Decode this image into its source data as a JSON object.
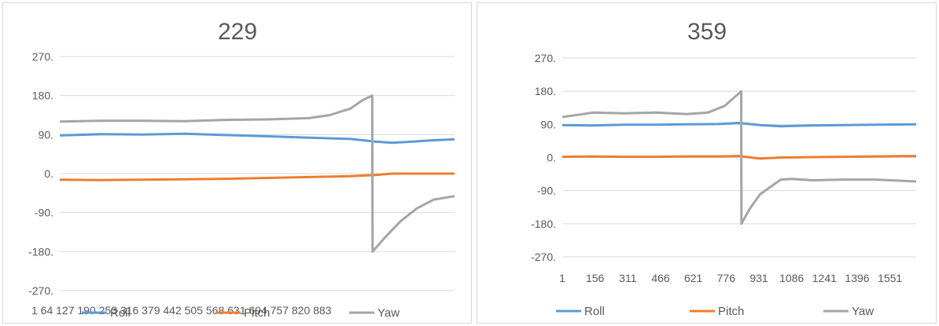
{
  "colors": {
    "roll": "#5b9bd5",
    "pitch": "#ed7d31",
    "yaw": "#a5a5a5",
    "grid": "#d9d9d9",
    "text": "#595959"
  },
  "chart_data": [
    {
      "type": "line",
      "title": "229",
      "ylim": [
        -270,
        270
      ],
      "yticks": [
        "270.",
        "180.",
        "90.",
        "0.",
        "-90.",
        "-180.",
        "-270."
      ],
      "xtick_labels_text": "1   64 127 190 253 316 379 442 505 568 631 694 757 820 883",
      "grid": true,
      "legend_position": "bottom",
      "series": [
        {
          "name": "Roll",
          "x": [
            1,
            100,
            200,
            300,
            400,
            500,
            600,
            700,
            760,
            800,
            850,
            900,
            950
          ],
          "values": [
            88,
            91,
            90,
            92,
            89,
            86,
            83,
            80,
            74,
            71,
            74,
            77,
            79
          ]
        },
        {
          "name": "Pitch",
          "x": [
            1,
            100,
            200,
            300,
            400,
            500,
            600,
            700,
            760,
            800,
            850,
            900,
            950
          ],
          "values": [
            -14,
            -15,
            -14,
            -13,
            -12,
            -10,
            -8,
            -6,
            -3,
            0,
            0,
            0,
            0
          ]
        },
        {
          "name": "Yaw",
          "x": [
            1,
            100,
            200,
            300,
            400,
            500,
            600,
            650,
            700,
            730,
            752,
            753,
            780,
            820,
            860,
            900,
            950
          ],
          "values": [
            120,
            122,
            122,
            121,
            124,
            125,
            128,
            135,
            150,
            170,
            180,
            -180,
            -150,
            -110,
            -80,
            -60,
            -52
          ]
        }
      ]
    },
    {
      "type": "line",
      "title": "359",
      "ylim": [
        -270,
        270
      ],
      "yticks": [
        "270.",
        "180.",
        "90.",
        "0.",
        "-90.",
        "-180.",
        "-270."
      ],
      "xtick_labels": [
        "1",
        "156",
        "311",
        "466",
        "621",
        "776",
        "931",
        "1086",
        "1241",
        "1396",
        "1551"
      ],
      "grid": true,
      "legend_position": "bottom",
      "series": [
        {
          "name": "Roll",
          "x": [
            1,
            150,
            300,
            450,
            600,
            750,
            850,
            950,
            1050,
            1200,
            1350,
            1500,
            1700
          ],
          "values": [
            88,
            87,
            89,
            89,
            90,
            91,
            94,
            88,
            85,
            87,
            88,
            89,
            90
          ]
        },
        {
          "name": "Pitch",
          "x": [
            1,
            150,
            300,
            450,
            600,
            750,
            850,
            950,
            1050,
            1200,
            1350,
            1500,
            1700
          ],
          "values": [
            2,
            3,
            2,
            2,
            3,
            3,
            4,
            -3,
            0,
            1,
            2,
            3,
            4
          ]
        },
        {
          "name": "Yaw",
          "x": [
            1,
            150,
            300,
            450,
            600,
            700,
            780,
            860,
            861,
            900,
            950,
            1000,
            1050,
            1100,
            1200,
            1350,
            1500,
            1700
          ],
          "values": [
            110,
            122,
            120,
            122,
            118,
            122,
            140,
            180,
            -180,
            -140,
            -100,
            -80,
            -60,
            -58,
            -62,
            -60,
            -60,
            -65
          ]
        }
      ]
    }
  ]
}
